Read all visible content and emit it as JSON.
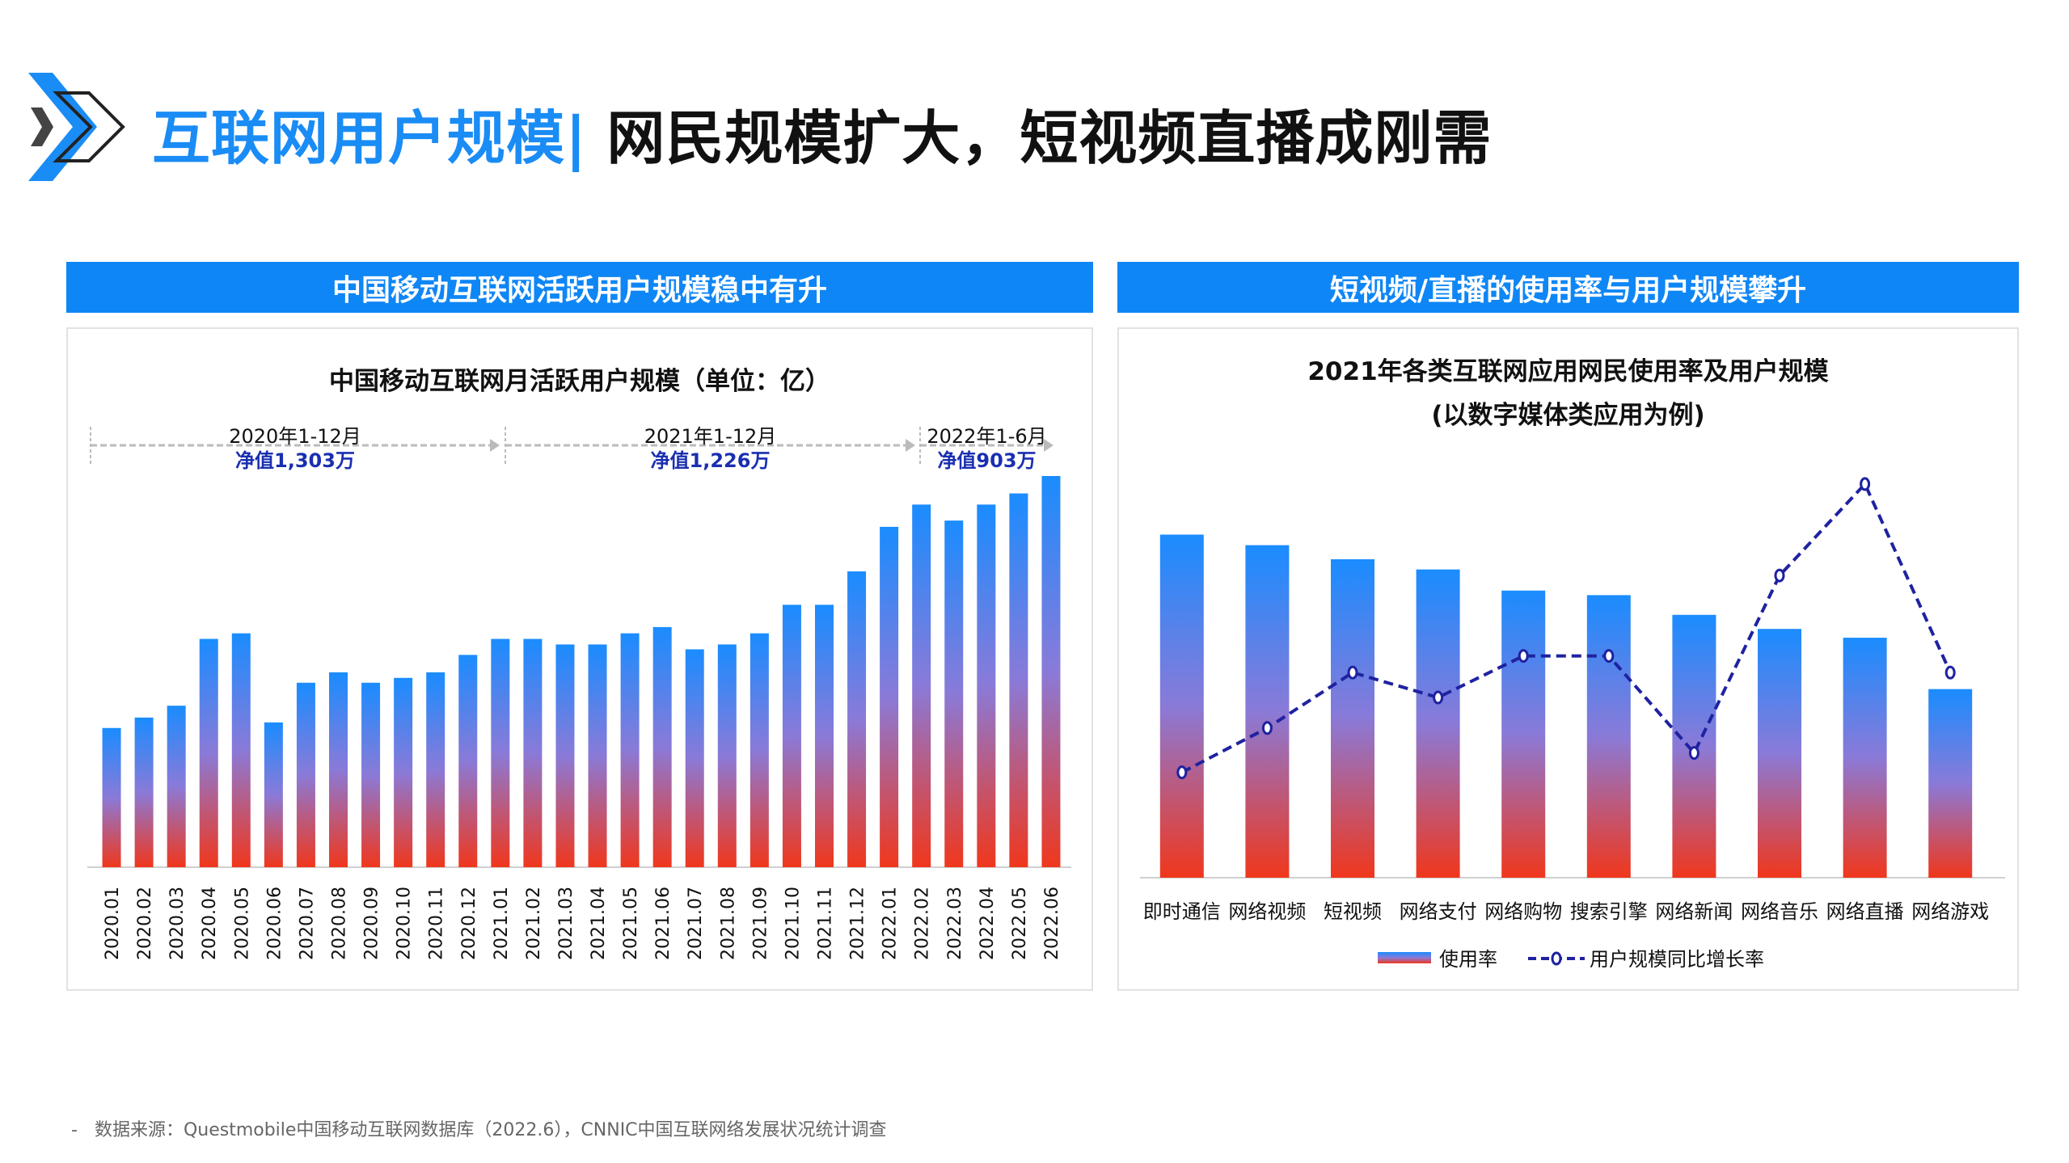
{
  "header": {
    "title_blue": "互联网用户规模|",
    "title_black": "网民规模扩大，短视频直播成刚需",
    "logo": "double-chevron-icon"
  },
  "left_panel": {
    "header": "中国移动互联网活跃用户规模稳中有升"
  },
  "right_panel": {
    "header": "短视频/直播的使用率与用户规模攀升"
  },
  "footer": {
    "bullet": "-",
    "source": "数据来源：Questmobile中国移动互联网数据库（2022.6），CNNIC中国互联网络发展状况统计调查"
  },
  "colors": {
    "accent": "#0f86f5",
    "bar_top": "#1a8cff",
    "bar_mid": "#8a7ad8",
    "bar_bottom": "#f0371c",
    "line": "#1f22a0",
    "annotation": "#1a2fb0"
  },
  "chart_data": [
    {
      "type": "bar",
      "title": "中国移动互联网月活跃用户规模（单位：亿）",
      "categories": [
        "2020.01",
        "2020.02",
        "2020.03",
        "2020.04",
        "2020.05",
        "2020.06",
        "2020.07",
        "2020.08",
        "2020.09",
        "2020.10",
        "2020.11",
        "2020.12",
        "2021.01",
        "2021.02",
        "2021.03",
        "2021.04",
        "2021.05",
        "2021.06",
        "2021.07",
        "2021.08",
        "2021.09",
        "2021.10",
        "2021.11",
        "2021.12",
        "2022.01",
        "2022.02",
        "2022.03",
        "2022.04",
        "2022.05",
        "2022.06"
      ],
      "values": [
        11.578,
        11.593,
        11.61,
        11.706,
        11.714,
        11.586,
        11.643,
        11.658,
        11.643,
        11.65,
        11.658,
        11.683,
        11.706,
        11.706,
        11.698,
        11.698,
        11.714,
        11.723,
        11.691,
        11.698,
        11.714,
        11.755,
        11.755,
        11.803,
        11.867,
        11.899,
        11.876,
        11.899,
        11.915,
        11.94
      ],
      "ylim": [
        11.378,
        11.94
      ],
      "grid": false,
      "annotations": [
        {
          "period": "2020年1-12月",
          "net": "净值1,303万"
        },
        {
          "period": "2021年1-12月",
          "net": "净值1,226万"
        },
        {
          "period": "2022年1-6月",
          "net": "净值903万"
        }
      ]
    },
    {
      "type": "bar+line",
      "title": "2021年各类互联网应用网民使用率及用户规模",
      "subtitle": "(以数字媒体类应用为例)",
      "categories": [
        "即时通信",
        "网络视频",
        "短视频",
        "网络支付",
        "网络购物",
        "搜索引擎",
        "网络新闻",
        "网络音乐",
        "网络直播",
        "网络游戏"
      ],
      "series": [
        {
          "name": "使用率",
          "type": "bar",
          "values": [
            97.5,
            94.5,
            90.5,
            87.6,
            81.6,
            80.3,
            74.7,
            70.7,
            68.2,
            53.6
          ]
        },
        {
          "name": "用户规模同比增长率",
          "type": "line",
          "values": [
            3.3,
            4.9,
            6.9,
            6.0,
            7.5,
            7.5,
            4.0,
            10.4,
            13.7,
            6.9
          ]
        }
      ],
      "ylim": [
        0,
        130
      ],
      "y2lim": [
        -0.5,
        16
      ],
      "grid": false,
      "legend": "bottom"
    }
  ]
}
